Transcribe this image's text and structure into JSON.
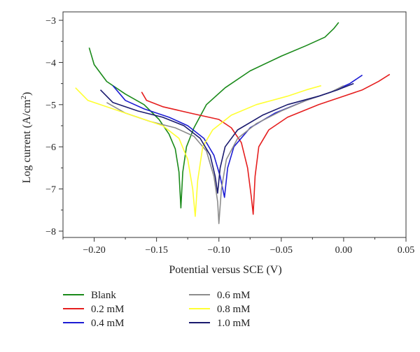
{
  "chart_data": {
    "type": "line",
    "title": "",
    "xlabel": "Potential versus SCE (V)",
    "ylabel_main": "Log current (A/cm",
    "ylabel_sup": "2",
    "ylabel_close": ")",
    "xlim": [
      -0.225,
      0.05
    ],
    "ylim": [
      -8.15,
      -2.8
    ],
    "x_ticks": [
      -0.2,
      -0.15,
      -0.1,
      -0.05,
      0.0,
      0.05
    ],
    "x_tick_labels": [
      "−0.20",
      "−0.15",
      "−0.10",
      "−0.05",
      "0.00",
      "0.05"
    ],
    "y_ticks": [
      -3,
      -4,
      -5,
      -6,
      -7,
      -8
    ],
    "y_tick_labels": [
      "−3",
      "−4",
      "−5",
      "−6",
      "−7",
      "−8"
    ],
    "grid": false,
    "legend_position": "bottom",
    "series": [
      {
        "name": "Blank",
        "color": "#1a8a1a",
        "cathodic": [
          [
            -0.204,
            -3.65
          ],
          [
            -0.2,
            -4.05
          ],
          [
            -0.19,
            -4.45
          ],
          [
            -0.175,
            -4.75
          ],
          [
            -0.16,
            -5.0
          ],
          [
            -0.148,
            -5.35
          ],
          [
            -0.14,
            -5.7
          ],
          [
            -0.135,
            -6.05
          ],
          [
            -0.132,
            -6.6
          ],
          [
            -0.1305,
            -7.45
          ]
        ],
        "anodic": [
          [
            -0.1305,
            -7.45
          ],
          [
            -0.129,
            -6.6
          ],
          [
            -0.126,
            -6.0
          ],
          [
            -0.12,
            -5.55
          ],
          [
            -0.11,
            -5.0
          ],
          [
            -0.095,
            -4.6
          ],
          [
            -0.075,
            -4.2
          ],
          [
            -0.05,
            -3.85
          ],
          [
            -0.03,
            -3.6
          ],
          [
            -0.015,
            -3.4
          ],
          [
            -0.008,
            -3.2
          ],
          [
            -0.004,
            -3.05
          ]
        ]
      },
      {
        "name": "0.2 mM",
        "color": "#e51e1e",
        "cathodic": [
          [
            -0.162,
            -4.7
          ],
          [
            -0.158,
            -4.9
          ],
          [
            -0.145,
            -5.05
          ],
          [
            -0.12,
            -5.22
          ],
          [
            -0.1,
            -5.35
          ],
          [
            -0.09,
            -5.55
          ],
          [
            -0.082,
            -5.9
          ],
          [
            -0.077,
            -6.5
          ],
          [
            -0.074,
            -7.2
          ],
          [
            -0.0725,
            -7.6
          ]
        ],
        "anodic": [
          [
            -0.0725,
            -7.6
          ],
          [
            -0.071,
            -6.7
          ],
          [
            -0.068,
            -6.0
          ],
          [
            -0.06,
            -5.6
          ],
          [
            -0.045,
            -5.3
          ],
          [
            -0.02,
            -5.0
          ],
          [
            0.0,
            -4.8
          ],
          [
            0.015,
            -4.65
          ],
          [
            0.028,
            -4.45
          ],
          [
            0.037,
            -4.28
          ]
        ]
      },
      {
        "name": "0.4 mM",
        "color": "#1c1cd4",
        "cathodic": [
          [
            -0.185,
            -4.55
          ],
          [
            -0.175,
            -4.9
          ],
          [
            -0.16,
            -5.1
          ],
          [
            -0.14,
            -5.3
          ],
          [
            -0.125,
            -5.5
          ],
          [
            -0.112,
            -5.8
          ],
          [
            -0.104,
            -6.2
          ],
          [
            -0.099,
            -6.7
          ],
          [
            -0.0955,
            -7.2
          ]
        ],
        "anodic": [
          [
            -0.0955,
            -7.2
          ],
          [
            -0.093,
            -6.5
          ],
          [
            -0.088,
            -6.0
          ],
          [
            -0.075,
            -5.55
          ],
          [
            -0.055,
            -5.2
          ],
          [
            -0.03,
            -4.9
          ],
          [
            -0.01,
            -4.7
          ],
          [
            0.005,
            -4.5
          ],
          [
            0.015,
            -4.3
          ]
        ]
      },
      {
        "name": "0.6 mM",
        "color": "#8c8c8c",
        "cathodic": [
          [
            -0.19,
            -4.95
          ],
          [
            -0.175,
            -5.2
          ],
          [
            -0.155,
            -5.4
          ],
          [
            -0.135,
            -5.55
          ],
          [
            -0.12,
            -5.75
          ],
          [
            -0.11,
            -6.1
          ],
          [
            -0.104,
            -6.7
          ],
          [
            -0.101,
            -7.3
          ],
          [
            -0.1,
            -7.82
          ]
        ],
        "anodic": [
          [
            -0.1,
            -7.82
          ],
          [
            -0.098,
            -7.0
          ],
          [
            -0.094,
            -6.3
          ],
          [
            -0.085,
            -5.8
          ],
          [
            -0.07,
            -5.45
          ],
          [
            -0.05,
            -5.15
          ],
          [
            -0.03,
            -4.9
          ],
          [
            -0.01,
            -4.7
          ],
          [
            0.0,
            -4.55
          ]
        ]
      },
      {
        "name": "0.8 mM",
        "color": "#ffff33",
        "cathodic": [
          [
            -0.215,
            -4.6
          ],
          [
            -0.205,
            -4.9
          ],
          [
            -0.185,
            -5.1
          ],
          [
            -0.165,
            -5.3
          ],
          [
            -0.145,
            -5.5
          ],
          [
            -0.132,
            -5.8
          ],
          [
            -0.125,
            -6.3
          ],
          [
            -0.121,
            -7.0
          ],
          [
            -0.119,
            -7.65
          ]
        ],
        "anodic": [
          [
            -0.119,
            -7.65
          ],
          [
            -0.117,
            -6.8
          ],
          [
            -0.113,
            -6.0
          ],
          [
            -0.105,
            -5.6
          ],
          [
            -0.09,
            -5.25
          ],
          [
            -0.07,
            -5.0
          ],
          [
            -0.045,
            -4.8
          ],
          [
            -0.03,
            -4.65
          ],
          [
            -0.018,
            -4.55
          ]
        ]
      },
      {
        "name": "1.0 mM",
        "color": "#1a1a6e",
        "cathodic": [
          [
            -0.195,
            -4.65
          ],
          [
            -0.185,
            -4.95
          ],
          [
            -0.165,
            -5.15
          ],
          [
            -0.145,
            -5.3
          ],
          [
            -0.128,
            -5.5
          ],
          [
            -0.115,
            -5.8
          ],
          [
            -0.107,
            -6.2
          ],
          [
            -0.103,
            -6.7
          ],
          [
            -0.101,
            -7.1
          ]
        ],
        "anodic": [
          [
            -0.101,
            -7.1
          ],
          [
            -0.099,
            -6.5
          ],
          [
            -0.095,
            -6.0
          ],
          [
            -0.085,
            -5.6
          ],
          [
            -0.065,
            -5.25
          ],
          [
            -0.045,
            -5.0
          ],
          [
            -0.02,
            -4.8
          ],
          [
            -0.005,
            -4.65
          ],
          [
            0.008,
            -4.5
          ]
        ]
      }
    ]
  }
}
